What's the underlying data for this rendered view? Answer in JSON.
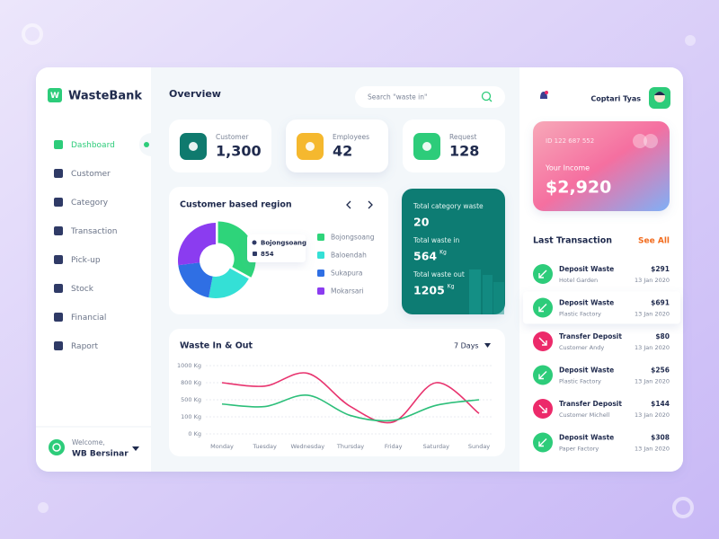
{
  "sidebar": {
    "logo": "W",
    "brand": "WasteBank",
    "menu": [
      "Dashboard",
      "Customer",
      "Category",
      "Transaction",
      "Pick-up",
      "Stock",
      "Financial",
      "Raport"
    ],
    "welcome": "Welcome,",
    "user": "WB Bersinar"
  },
  "header": {
    "title": "Overview",
    "search_placeholder": "Search \"waste in\"",
    "username": "Coptari Tyas"
  },
  "stats": [
    {
      "label": "Customer",
      "value": "1,300",
      "color": "#0f7a6e"
    },
    {
      "label": "Employees",
      "value": "42",
      "color": "#f5b82e"
    },
    {
      "label": "Request",
      "value": "128",
      "color": "#2dcc7a"
    }
  ],
  "region_chart": {
    "type": "pie",
    "title": "Customer based region",
    "categories": [
      "Bojongsoang",
      "Baloendah",
      "Sukapura",
      "Mokarsari"
    ],
    "values": [
      33,
      20,
      20,
      27
    ],
    "colors": [
      "#2ed47a",
      "#34e0d6",
      "#2f6fe4",
      "#8b3cf0"
    ],
    "tooltip": {
      "label": "Bojongsoang",
      "value": "854"
    }
  },
  "waste_summary": [
    {
      "label": "Total category waste",
      "value": "20"
    },
    {
      "label": "Total waste in",
      "value": "564",
      "unit": "Kg"
    },
    {
      "label": "Total waste out",
      "value": "1205",
      "unit": "Kg"
    }
  ],
  "line_chart": {
    "type": "line",
    "title": "Waste In & Out",
    "period": "7 Days",
    "categories": [
      "Monday",
      "Tuesday",
      "Wednesday",
      "Thursday",
      "Friday",
      "Saturday",
      "Sunday"
    ],
    "series": [
      {
        "color": "#e8336e",
        "values": [
          800,
          740,
          910,
          340,
          70,
          800,
          180
        ]
      },
      {
        "color": "#2dbf7a",
        "values": [
          400,
          340,
          580,
          130,
          80,
          370,
          500
        ]
      }
    ],
    "ylim": [
      0,
      1000
    ],
    "yticks": [
      {
        "value": 0,
        "label": "0 Kg"
      },
      {
        "value": 100,
        "label": "100 Kg"
      },
      {
        "value": 500,
        "label": "500 Kg"
      },
      {
        "value": 800,
        "label": "800 Kg"
      },
      {
        "value": 1000,
        "label": "1000 Kg"
      }
    ],
    "grid": true
  },
  "card": {
    "id": "ID 122 687 552",
    "label": "Your Income",
    "amount": "$2,920"
  },
  "transactions": {
    "title": "Last Transaction",
    "link": "See All",
    "items": [
      {
        "type": "Deposit Waste",
        "party": "Hotel Garden",
        "amount": "$291",
        "date": "13 Jan 2020",
        "color": "#2dcc7a"
      },
      {
        "type": "Deposit Waste",
        "party": "Plastic Factory",
        "amount": "$691",
        "date": "13 Jan 2020",
        "color": "#2dcc7a"
      },
      {
        "type": "Transfer Deposit",
        "party": "Customer Andy",
        "amount": "$80",
        "date": "13 Jan 2020",
        "color": "#ec2a6a"
      },
      {
        "type": "Deposit Waste",
        "party": "Plastic Factory",
        "amount": "$256",
        "date": "13 Jan 2020",
        "color": "#2dcc7a"
      },
      {
        "type": "Transfer Deposit",
        "party": "Customer Michell",
        "amount": "$144",
        "date": "13 Jan 2020",
        "color": "#ec2a6a"
      },
      {
        "type": "Deposit Waste",
        "party": "Paper Factory",
        "amount": "$308",
        "date": "13 Jan 2020",
        "color": "#2dcc7a"
      }
    ]
  }
}
